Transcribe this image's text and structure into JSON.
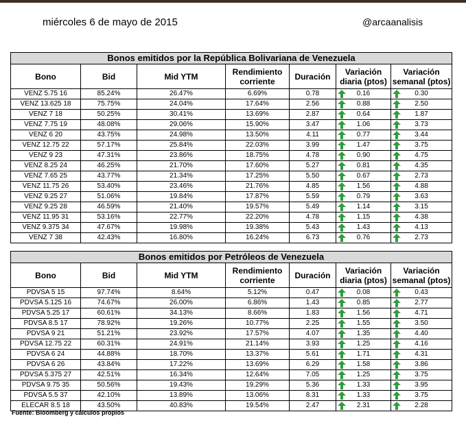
{
  "header": {
    "date": "miércoles 6 de mayo de 2015",
    "handle": "@arcaanalisis"
  },
  "columns": [
    "Bono",
    "Bid",
    "Mid YTM",
    "Rendimiento corriente",
    "Duración",
    "Variación diaria (ptos)",
    "Variación semanal (ptos)"
  ],
  "colors": {
    "title_bg": "#d9d9d9",
    "arrow_green": "#2e9e3e"
  },
  "icon": "up-arrow-icon",
  "tables": [
    {
      "title": "Bonos emitidos por la República Bolivariana de Venezuela",
      "rows": [
        [
          "VENZ 5.75 16",
          "85.24%",
          "26.47%",
          "6.69%",
          "0.78",
          "0.16",
          "0.30"
        ],
        [
          "VENZ 13.625 18",
          "75.75%",
          "24.04%",
          "17.64%",
          "2.56",
          "0.88",
          "2.50"
        ],
        [
          "VENZ 7 18",
          "50.25%",
          "30.41%",
          "13.69%",
          "2.87",
          "0.64",
          "1.87"
        ],
        [
          "VENZ 7.75 19",
          "48.08%",
          "29.06%",
          "15.90%",
          "3.47",
          "1.06",
          "3.73"
        ],
        [
          "VENZ 6 20",
          "43.75%",
          "24.98%",
          "13.50%",
          "4.11",
          "0.77",
          "3.44"
        ],
        [
          "VENZ 12.75 22",
          "57.17%",
          "25.84%",
          "22.03%",
          "3.99",
          "1.47",
          "3.75"
        ],
        [
          "VENZ 9 23",
          "47.31%",
          "23.86%",
          "18.75%",
          "4.78",
          "0.90",
          "4.75"
        ],
        [
          "VENZ 8.25 24",
          "46.25%",
          "21.70%",
          "17.60%",
          "5.27",
          "0.81",
          "4.35"
        ],
        [
          "VENZ 7.65 25",
          "43.77%",
          "21.34%",
          "17.25%",
          "5.50",
          "0.67",
          "2.73"
        ],
        [
          "VENZ 11.75 26",
          "53.40%",
          "23.46%",
          "21.76%",
          "4.85",
          "1.56",
          "4.88"
        ],
        [
          "VENZ 9.25 27",
          "51.06%",
          "19.84%",
          "17.87%",
          "5.59",
          "0.79",
          "3.63"
        ],
        [
          "VENZ 9.25 28",
          "46.59%",
          "21.40%",
          "19.57%",
          "5.49",
          "1.14",
          "3.15"
        ],
        [
          "VENZ 11.95 31",
          "53.16%",
          "22.77%",
          "22.20%",
          "4.78",
          "1.15",
          "4.38"
        ],
        [
          "VENZ 9.375 34",
          "47.67%",
          "19.98%",
          "19.38%",
          "5.43",
          "1.43",
          "4.13"
        ],
        [
          "VENZ 7 38",
          "42.43%",
          "16.80%",
          "16.24%",
          "6.73",
          "0.76",
          "2.73"
        ]
      ]
    },
    {
      "title": "Bonos emitidos por Petróleos de Venezuela",
      "rows": [
        [
          "PDVSA 5 15",
          "97.74%",
          "8.64%",
          "5.12%",
          "0.47",
          "0.08",
          "0.43"
        ],
        [
          "PDVSA 5.125 16",
          "74.67%",
          "26.00%",
          "6.86%",
          "1.43",
          "0.85",
          "2.77"
        ],
        [
          "PDVSA 5.25 17",
          "60.61%",
          "34.13%",
          "8.66%",
          "1.83",
          "1.56",
          "4.71"
        ],
        [
          "PDVSA 8.5 17",
          "78.92%",
          "19.26%",
          "10.77%",
          "2.25",
          "1.55",
          "3.50"
        ],
        [
          "PDVSA 9 21",
          "51.21%",
          "23.92%",
          "17.57%",
          "4.07",
          "1.35",
          "4.40"
        ],
        [
          "PDVSA 12.75 22",
          "60.31%",
          "24.91%",
          "21.14%",
          "3.93",
          "1.25",
          "4.16"
        ],
        [
          "PDVSA 6 24",
          "44.88%",
          "18.70%",
          "13.37%",
          "5.61",
          "1.71",
          "4.31"
        ],
        [
          "PDVSA 6 26",
          "43.84%",
          "17.22%",
          "13.69%",
          "6.29",
          "1.58",
          "3.86"
        ],
        [
          "PDVSA 5.375 27",
          "42.51%",
          "16.34%",
          "12.64%",
          "7.05",
          "1.25",
          "3.75"
        ],
        [
          "PDVSA 9.75 35",
          "50.56%",
          "19.43%",
          "19.29%",
          "5.36",
          "1.33",
          "3.95"
        ],
        [
          "PDVSA 5.5 37",
          "42.10%",
          "13.89%",
          "13.06%",
          "8.31",
          "1.33",
          "3.75"
        ],
        [
          "ELECAR 8.5 18",
          "43.50%",
          "40.83%",
          "19.54%",
          "2.47",
          "2.31",
          "2.28"
        ]
      ]
    }
  ],
  "source_note": "Fuente: Bloomberg y cálculos propios"
}
